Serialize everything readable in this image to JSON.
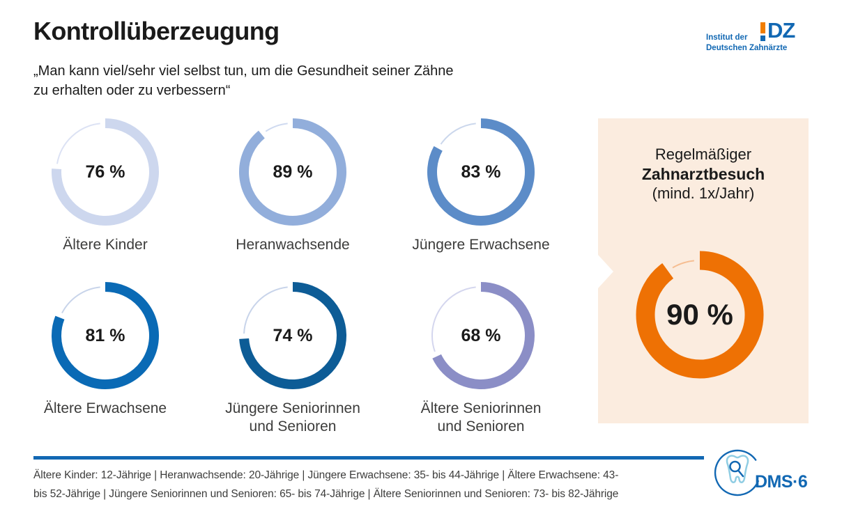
{
  "header": {
    "title": "Kontrollüberzeugung",
    "subtitle": "„Man kann viel/sehr viel selbst tun, um die Gesundheit seiner Zähne\nzu erhalten oder zu verbessern“",
    "logo": {
      "org_line1": "Institut der",
      "org_line2": "Deutschen Zahnärzte",
      "mark_letters": "DZ"
    }
  },
  "chart_data": {
    "type": "donut",
    "unit": "%",
    "title": "Kontrollüberzeugung",
    "groups": [
      {
        "label": "Ältere Kinder",
        "value": 76,
        "pct_label": "76 %",
        "color": "#CDD7EE",
        "track": "#DCE2F4"
      },
      {
        "label": "Heranwachsende",
        "value": 89,
        "pct_label": "89 %",
        "color": "#92AEDB",
        "track": "#CFDAF0"
      },
      {
        "label": "Jüngere Erwachsene",
        "value": 83,
        "pct_label": "83 %",
        "color": "#5C8CC8",
        "track": "#CBD7EC"
      },
      {
        "label": "Ältere Erwachsene",
        "value": 81,
        "pct_label": "81 %",
        "color": "#0A6AB5",
        "track": "#C8D4EA"
      },
      {
        "label": "Jüngere Seniorinnen\nund Senioren",
        "value": 74,
        "pct_label": "74 %",
        "color": "#0D5C96",
        "track": "#C8D4EA"
      },
      {
        "label": "Ältere Seniorinnen\nund Senioren",
        "value": 68,
        "pct_label": "68 %",
        "color": "#8B8EC6",
        "track": "#D4D6EE"
      }
    ],
    "highlight": {
      "title_line1": "Regelmäßiger",
      "title_line2": "Zahnarztbesuch",
      "title_line3": "(mind. 1x/Jahr)",
      "value": 90,
      "pct_label": "90 %",
      "color": "#EE7104",
      "track": "#F6BE92",
      "panel_bg": "#FBECDF"
    }
  },
  "footer": {
    "legend": "Ältere Kinder: 12-Jährige | Heranwachsende: 20-Jährige | Jüngere Erwachsene: 35- bis 44-Jährige | Ältere Erwachsene: 43-\nbis 52-Jährige | Jüngere Seniorinnen und Senioren: 65- bis 74-Jährige | Ältere Seniorinnen und Senioren: 73- bis 82-Jährige",
    "brand": "DMS·6"
  },
  "colors": {
    "brand_blue": "#1268B3",
    "brand_orange": "#F07D00",
    "rule": "#1268B3",
    "text_dark": "#1a1a1a",
    "text_gray": "#3c3c3b"
  }
}
